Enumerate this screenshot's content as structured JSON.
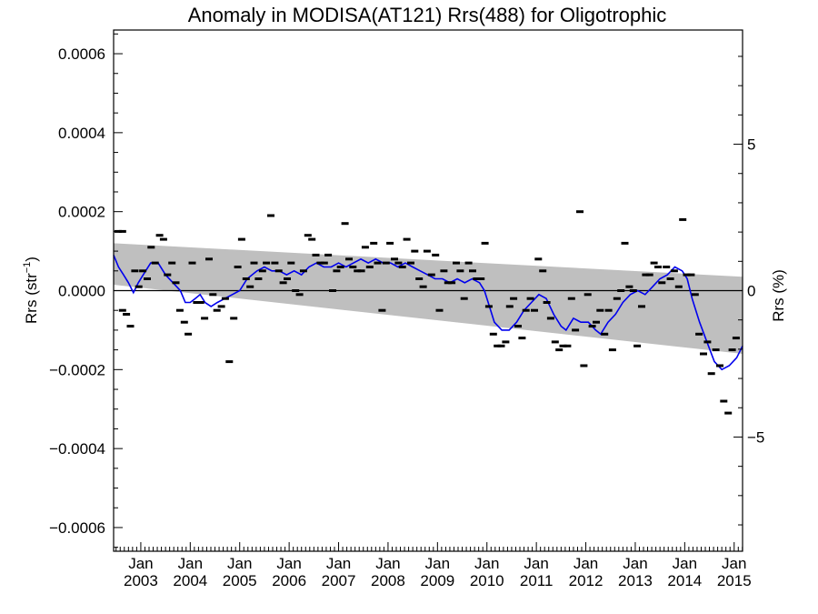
{
  "chart_data": {
    "type": "scatter",
    "title": "Anomaly in MODISA(AT121) Rrs(488) for Oligotrophic",
    "ylabel_left": {
      "base": "Rrs (str",
      "sup": "−1",
      "close": ")"
    },
    "ylabel_right": "Rrs (%)",
    "grid": false,
    "xlim": [
      2002.45,
      2015.17
    ],
    "ylim_left": [
      -0.00066,
      0.00066
    ],
    "ylim_right": [
      -8.9,
      8.9
    ],
    "y_left_ticks": [
      {
        "value": 0.0006,
        "label": "0.0006"
      },
      {
        "value": 0.0004,
        "label": "0.0004"
      },
      {
        "value": 0.0002,
        "label": "0.0002"
      },
      {
        "value": 0.0,
        "label": "0.0000"
      },
      {
        "value": -0.0002,
        "label": "−0.0002"
      },
      {
        "value": -0.0004,
        "label": "−0.0004"
      },
      {
        "value": -0.0006,
        "label": "−0.0006"
      }
    ],
    "y_right_ticks": [
      {
        "value": 5,
        "label": "5"
      },
      {
        "value": 0,
        "label": "0"
      },
      {
        "value": -5,
        "label": "−5"
      }
    ],
    "x_ticks": [
      {
        "value": 2003,
        "month": "Jan",
        "year": "2003"
      },
      {
        "value": 2004,
        "month": "Jan",
        "year": "2004"
      },
      {
        "value": 2005,
        "month": "Jan",
        "year": "2005"
      },
      {
        "value": 2006,
        "month": "Jan",
        "year": "2006"
      },
      {
        "value": 2007,
        "month": "Jan",
        "year": "2007"
      },
      {
        "value": 2008,
        "month": "Jan",
        "year": "2008"
      },
      {
        "value": 2009,
        "month": "Jan",
        "year": "2009"
      },
      {
        "value": 2010,
        "month": "Jan",
        "year": "2010"
      },
      {
        "value": 2011,
        "month": "Jan",
        "year": "2011"
      },
      {
        "value": 2012,
        "month": "Jan",
        "year": "2012"
      },
      {
        "value": 2013,
        "month": "Jan",
        "year": "2013"
      },
      {
        "value": 2014,
        "month": "Jan",
        "year": "2014"
      },
      {
        "value": 2015,
        "month": "Jan",
        "year": "2015"
      }
    ],
    "trend_band": {
      "x": [
        2002.45,
        2015.17
      ],
      "upper": [
        0.00012,
        3.5e-05
      ],
      "lower": [
        1.5e-05,
        -0.00016
      ]
    },
    "zero_line": 0,
    "monthly_points": [
      [
        2002.54,
        0.00015
      ],
      [
        2002.63,
        0.00015
      ],
      [
        2002.63,
        -5e-05
      ],
      [
        2002.71,
        -6e-05
      ],
      [
        2002.79,
        -9e-05
      ],
      [
        2002.88,
        5e-05
      ],
      [
        2002.96,
        1e-05
      ],
      [
        2003.04,
        5e-05
      ],
      [
        2003.13,
        3e-05
      ],
      [
        2003.21,
        0.00011
      ],
      [
        2003.29,
        7e-05
      ],
      [
        2003.38,
        0.00014
      ],
      [
        2003.46,
        0.00013
      ],
      [
        2003.54,
        4e-05
      ],
      [
        2003.63,
        7e-05
      ],
      [
        2003.71,
        2e-05
      ],
      [
        2003.79,
        -5e-05
      ],
      [
        2003.88,
        -8e-05
      ],
      [
        2003.96,
        -0.00011
      ],
      [
        2004.04,
        7e-05
      ],
      [
        2004.13,
        -3e-05
      ],
      [
        2004.21,
        -3e-05
      ],
      [
        2004.29,
        -7e-05
      ],
      [
        2004.38,
        8e-05
      ],
      [
        2004.46,
        -1e-05
      ],
      [
        2004.54,
        -5e-05
      ],
      [
        2004.63,
        -4e-05
      ],
      [
        2004.71,
        -2e-05
      ],
      [
        2004.79,
        -0.00018
      ],
      [
        2004.88,
        -7e-05
      ],
      [
        2004.96,
        6e-05
      ],
      [
        2005.04,
        0.00013
      ],
      [
        2005.13,
        3e-05
      ],
      [
        2005.21,
        1e-05
      ],
      [
        2005.29,
        7e-05
      ],
      [
        2005.38,
        3e-05
      ],
      [
        2005.46,
        5e-05
      ],
      [
        2005.54,
        7e-05
      ],
      [
        2005.63,
        0.00019
      ],
      [
        2005.71,
        7e-05
      ],
      [
        2005.79,
        5e-05
      ],
      [
        2005.88,
        2e-05
      ],
      [
        2005.96,
        3e-05
      ],
      [
        2006.04,
        7e-05
      ],
      [
        2006.13,
        0.0
      ],
      [
        2006.21,
        -1e-05
      ],
      [
        2006.29,
        5e-05
      ],
      [
        2006.38,
        0.00014
      ],
      [
        2006.46,
        0.00013
      ],
      [
        2006.54,
        9e-05
      ],
      [
        2006.63,
        7e-05
      ],
      [
        2006.71,
        7e-05
      ],
      [
        2006.79,
        9e-05
      ],
      [
        2006.88,
        0.0
      ],
      [
        2006.96,
        5e-05
      ],
      [
        2007.04,
        6e-05
      ],
      [
        2007.13,
        0.00017
      ],
      [
        2007.21,
        8e-05
      ],
      [
        2007.29,
        6e-05
      ],
      [
        2007.38,
        5e-05
      ],
      [
        2007.46,
        5e-05
      ],
      [
        2007.54,
        0.00011
      ],
      [
        2007.63,
        6e-05
      ],
      [
        2007.71,
        0.00012
      ],
      [
        2007.79,
        7e-05
      ],
      [
        2007.88,
        -5e-05
      ],
      [
        2007.96,
        7e-05
      ],
      [
        2008.04,
        0.00012
      ],
      [
        2008.13,
        8e-05
      ],
      [
        2008.21,
        7e-05
      ],
      [
        2008.29,
        6e-05
      ],
      [
        2008.38,
        0.00013
      ],
      [
        2008.46,
        7e-05
      ],
      [
        2008.54,
        0.0001
      ],
      [
        2008.63,
        3e-05
      ],
      [
        2008.71,
        1e-05
      ],
      [
        2008.79,
        0.0001
      ],
      [
        2008.88,
        4e-05
      ],
      [
        2008.96,
        9e-05
      ],
      [
        2009.04,
        -5e-05
      ],
      [
        2009.13,
        5e-05
      ],
      [
        2009.21,
        2e-05
      ],
      [
        2009.29,
        2e-05
      ],
      [
        2009.38,
        7e-05
      ],
      [
        2009.46,
        5e-05
      ],
      [
        2009.54,
        -2e-05
      ],
      [
        2009.63,
        7e-05
      ],
      [
        2009.71,
        5e-05
      ],
      [
        2009.79,
        3e-05
      ],
      [
        2009.88,
        3e-05
      ],
      [
        2009.96,
        0.00012
      ],
      [
        2010.04,
        -4e-05
      ],
      [
        2010.13,
        -0.00011
      ],
      [
        2010.21,
        -0.00014
      ],
      [
        2010.29,
        -0.00014
      ],
      [
        2010.38,
        -0.00013
      ],
      [
        2010.46,
        -4e-05
      ],
      [
        2010.54,
        -2e-05
      ],
      [
        2010.63,
        -9e-05
      ],
      [
        2010.71,
        -0.00012
      ],
      [
        2010.79,
        -5e-05
      ],
      [
        2010.88,
        -2e-05
      ],
      [
        2010.96,
        -5e-05
      ],
      [
        2011.04,
        8e-05
      ],
      [
        2011.13,
        5e-05
      ],
      [
        2011.21,
        -3e-05
      ],
      [
        2011.29,
        -7e-05
      ],
      [
        2011.38,
        -0.00013
      ],
      [
        2011.46,
        -0.00015
      ],
      [
        2011.54,
        -0.00014
      ],
      [
        2011.63,
        -0.00014
      ],
      [
        2011.71,
        -2e-05
      ],
      [
        2011.79,
        -0.0001
      ],
      [
        2011.88,
        0.0002
      ],
      [
        2011.96,
        -0.00019
      ],
      [
        2012.04,
        -1e-05
      ],
      [
        2012.13,
        -9e-05
      ],
      [
        2012.21,
        -8e-05
      ],
      [
        2012.29,
        -5e-05
      ],
      [
        2012.38,
        -0.00011
      ],
      [
        2012.46,
        -5e-05
      ],
      [
        2012.54,
        -0.00015
      ],
      [
        2012.63,
        -2e-05
      ],
      [
        2012.71,
        0.0
      ],
      [
        2012.79,
        0.00012
      ],
      [
        2012.88,
        1e-05
      ],
      [
        2012.96,
        0.0
      ],
      [
        2013.04,
        -0.00014
      ],
      [
        2013.13,
        -4e-05
      ],
      [
        2013.21,
        4e-05
      ],
      [
        2013.29,
        4e-05
      ],
      [
        2013.38,
        7e-05
      ],
      [
        2013.46,
        6e-05
      ],
      [
        2013.54,
        2e-05
      ],
      [
        2013.63,
        6e-05
      ],
      [
        2013.71,
        3e-05
      ],
      [
        2013.79,
        5e-05
      ],
      [
        2013.88,
        1e-05
      ],
      [
        2013.96,
        0.00018
      ],
      [
        2014.04,
        4e-05
      ],
      [
        2014.13,
        4e-05
      ],
      [
        2014.21,
        -1e-05
      ],
      [
        2014.29,
        -0.00011
      ],
      [
        2014.38,
        -0.00016
      ],
      [
        2014.46,
        -0.00013
      ],
      [
        2014.54,
        -0.00021
      ],
      [
        2014.63,
        -0.00015
      ],
      [
        2014.71,
        -0.00019
      ],
      [
        2014.79,
        -0.00028
      ],
      [
        2014.88,
        -0.00031
      ],
      [
        2014.96,
        -0.00015
      ],
      [
        2015.04,
        -0.00012
      ]
    ],
    "running_mean": [
      [
        2002.45,
        9e-05
      ],
      [
        2002.55,
        6e-05
      ],
      [
        2002.65,
        4e-05
      ],
      [
        2002.75,
        2e-05
      ],
      [
        2002.85,
        -5e-06
      ],
      [
        2002.95,
        2e-05
      ],
      [
        2003.05,
        4e-05
      ],
      [
        2003.2,
        7e-05
      ],
      [
        2003.35,
        7e-05
      ],
      [
        2003.5,
        4e-05
      ],
      [
        2003.65,
        2e-05
      ],
      [
        2003.8,
        0.0
      ],
      [
        2003.9,
        -3e-05
      ],
      [
        2004.0,
        -3e-05
      ],
      [
        2004.1,
        -2e-05
      ],
      [
        2004.2,
        -1e-05
      ],
      [
        2004.3,
        -3e-05
      ],
      [
        2004.42,
        -4e-05
      ],
      [
        2004.55,
        -3e-05
      ],
      [
        2004.7,
        -2e-05
      ],
      [
        2004.85,
        -1e-05
      ],
      [
        2005.0,
        0.0
      ],
      [
        2005.15,
        3e-05
      ],
      [
        2005.35,
        5e-05
      ],
      [
        2005.5,
        6e-05
      ],
      [
        2005.65,
        5e-05
      ],
      [
        2005.8,
        5e-05
      ],
      [
        2005.95,
        4e-05
      ],
      [
        2006.1,
        5e-05
      ],
      [
        2006.25,
        4e-05
      ],
      [
        2006.4,
        6e-05
      ],
      [
        2006.55,
        7e-05
      ],
      [
        2006.7,
        6e-05
      ],
      [
        2006.85,
        6e-05
      ],
      [
        2007.0,
        7e-05
      ],
      [
        2007.15,
        6e-05
      ],
      [
        2007.3,
        7e-05
      ],
      [
        2007.45,
        8e-05
      ],
      [
        2007.6,
        7e-05
      ],
      [
        2007.75,
        8e-05
      ],
      [
        2007.9,
        7e-05
      ],
      [
        2008.05,
        7e-05
      ],
      [
        2008.2,
        6e-05
      ],
      [
        2008.35,
        7e-05
      ],
      [
        2008.5,
        6e-05
      ],
      [
        2008.65,
        5e-05
      ],
      [
        2008.8,
        4e-05
      ],
      [
        2008.95,
        3e-05
      ],
      [
        2009.1,
        3e-05
      ],
      [
        2009.25,
        2e-05
      ],
      [
        2009.4,
        3e-05
      ],
      [
        2009.55,
        2e-05
      ],
      [
        2009.7,
        3e-05
      ],
      [
        2009.85,
        2e-05
      ],
      [
        2009.95,
        0.0
      ],
      [
        2010.05,
        -4e-05
      ],
      [
        2010.15,
        -8e-05
      ],
      [
        2010.3,
        -0.0001
      ],
      [
        2010.45,
        -0.0001
      ],
      [
        2010.6,
        -8e-05
      ],
      [
        2010.75,
        -5e-05
      ],
      [
        2010.9,
        -3e-05
      ],
      [
        2011.05,
        -1e-05
      ],
      [
        2011.2,
        -2e-05
      ],
      [
        2011.35,
        -6e-05
      ],
      [
        2011.5,
        -9e-05
      ],
      [
        2011.6,
        -0.0001
      ],
      [
        2011.75,
        -7e-05
      ],
      [
        2011.9,
        -8e-05
      ],
      [
        2012.05,
        -8e-05
      ],
      [
        2012.2,
        -0.0001
      ],
      [
        2012.3,
        -0.00011
      ],
      [
        2012.45,
        -8e-05
      ],
      [
        2012.6,
        -6e-05
      ],
      [
        2012.75,
        -3e-05
      ],
      [
        2012.9,
        -1e-05
      ],
      [
        2013.05,
        0.0
      ],
      [
        2013.2,
        -1e-05
      ],
      [
        2013.35,
        1e-05
      ],
      [
        2013.5,
        3e-05
      ],
      [
        2013.65,
        4e-05
      ],
      [
        2013.8,
        6e-05
      ],
      [
        2013.95,
        5e-05
      ],
      [
        2014.05,
        3e-05
      ],
      [
        2014.15,
        -2e-05
      ],
      [
        2014.3,
        -8e-05
      ],
      [
        2014.45,
        -0.00013
      ],
      [
        2014.6,
        -0.00018
      ],
      [
        2014.75,
        -0.0002
      ],
      [
        2014.9,
        -0.00019
      ],
      [
        2015.05,
        -0.00017
      ],
      [
        2015.17,
        -0.00014
      ]
    ],
    "colors": {
      "band": "#bfbfbf",
      "mean_line": "#0000ee",
      "points": "#000000",
      "zero_line": "#000000"
    }
  }
}
